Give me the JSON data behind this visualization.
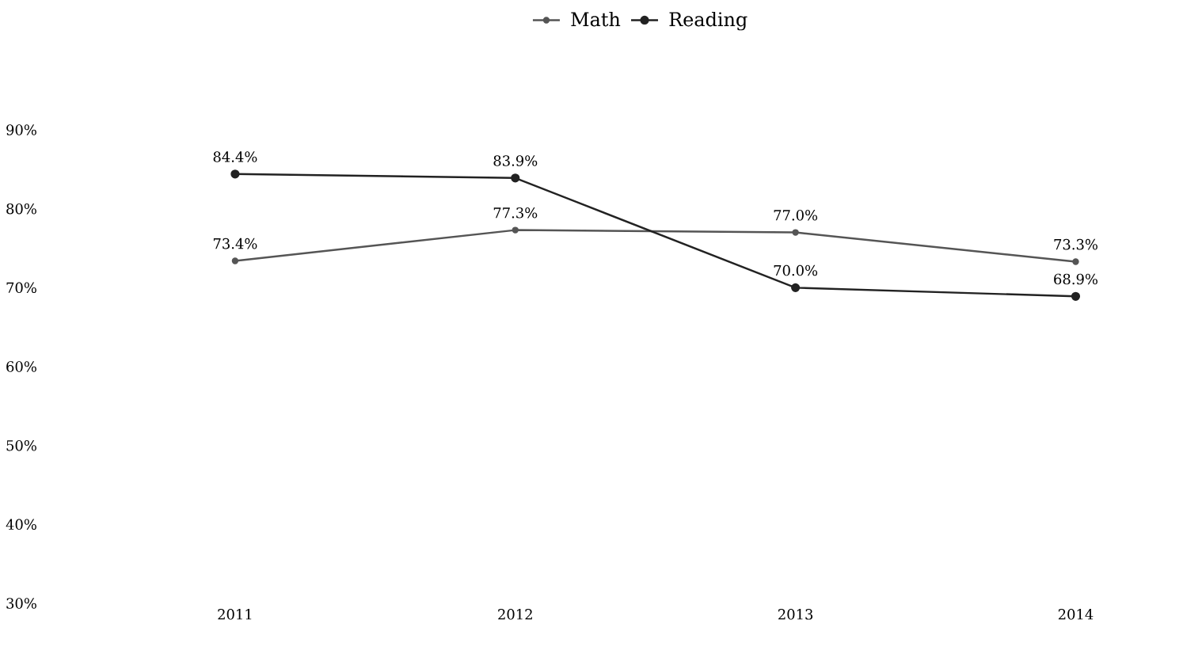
{
  "chart_data": {
    "type": "line",
    "categories": [
      "2011",
      "2012",
      "2013",
      "2014"
    ],
    "series": [
      {
        "name": "Math",
        "color": "#555555",
        "values": [
          73.4,
          77.3,
          77.0,
          73.3
        ],
        "value_labels": [
          "73.4%",
          "77.3%",
          "77.0%",
          "73.3%"
        ]
      },
      {
        "name": "Reading",
        "color": "#222222",
        "values": [
          84.4,
          83.9,
          70.0,
          68.9
        ],
        "value_labels": [
          "84.4%",
          "83.9%",
          "70.0%",
          "68.9%"
        ]
      }
    ],
    "ylim": [
      30,
      90
    ],
    "yticks": [
      {
        "value": 30,
        "label": "30%"
      },
      {
        "value": 40,
        "label": "40%"
      },
      {
        "value": 50,
        "label": "50%"
      },
      {
        "value": 60,
        "label": "60%"
      },
      {
        "value": 70,
        "label": "70%"
      },
      {
        "value": 80,
        "label": "80%"
      },
      {
        "value": 90,
        "label": "90%"
      }
    ],
    "legend": "top",
    "marker": "circle",
    "line_style": "solid",
    "grid": false
  }
}
